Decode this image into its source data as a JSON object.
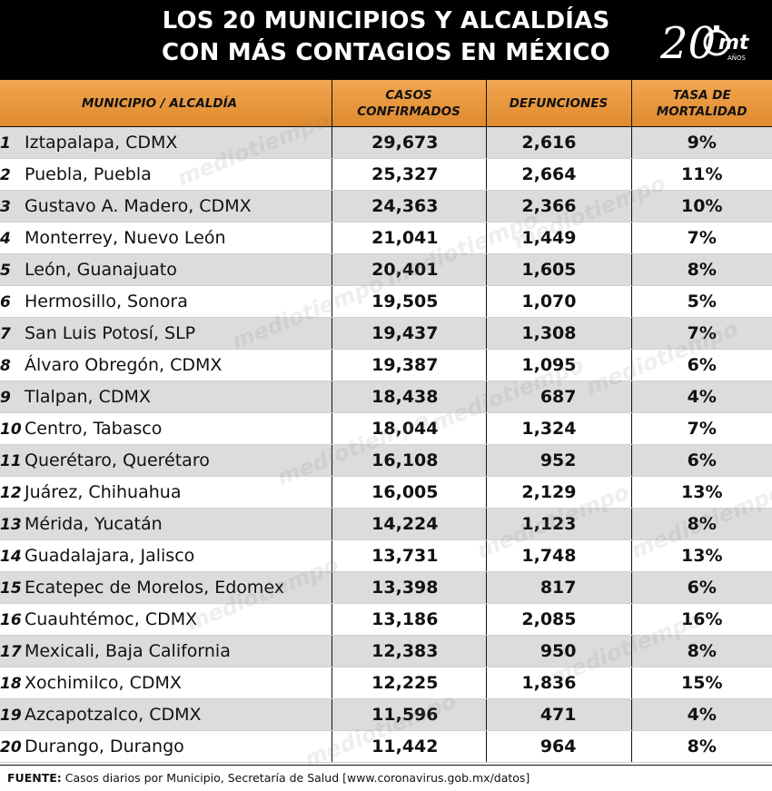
{
  "title": {
    "line1": "LOS 20 MUNICIPIOS Y ALCALDÍAS",
    "line2": "CON MÁS CONTAGIOS EN MÉXICO"
  },
  "logo": {
    "number": "20",
    "brand": "mt",
    "suffix": "AÑOS"
  },
  "watermark": "mediotiempo",
  "colors": {
    "header_bg": "#000000",
    "column_header": "#eb9a3f",
    "row_shade": "#dcdcdc"
  },
  "chart_data": {
    "type": "table",
    "columns": [
      "MUNICIPIO / ALCALDÍA",
      "CASOS CONFIRMADOS",
      "DEFUNCIONES",
      "TASA DE MORTALIDAD"
    ],
    "rows": [
      {
        "rank": "1",
        "municipio": "Iztapalapa, CDMX",
        "casos": "29,673",
        "defunciones": "2,616",
        "tasa": "9%"
      },
      {
        "rank": "2",
        "municipio": "Puebla, Puebla",
        "casos": "25,327",
        "defunciones": "2,664",
        "tasa": "11%"
      },
      {
        "rank": "3",
        "municipio": "Gustavo A. Madero, CDMX",
        "casos": "24,363",
        "defunciones": "2,366",
        "tasa": "10%"
      },
      {
        "rank": "4",
        "municipio": "Monterrey, Nuevo León",
        "casos": "21,041",
        "defunciones": "1,449",
        "tasa": "7%"
      },
      {
        "rank": "5",
        "municipio": "León, Guanajuato",
        "casos": "20,401",
        "defunciones": "1,605",
        "tasa": "8%"
      },
      {
        "rank": "6",
        "municipio": "Hermosillo, Sonora",
        "casos": "19,505",
        "defunciones": "1,070",
        "tasa": "5%"
      },
      {
        "rank": "7",
        "municipio": "San Luis Potosí, SLP",
        "casos": "19,437",
        "defunciones": "1,308",
        "tasa": "7%"
      },
      {
        "rank": "8",
        "municipio": "Álvaro Obregón, CDMX",
        "casos": "19,387",
        "defunciones": "1,095",
        "tasa": "6%"
      },
      {
        "rank": "9",
        "municipio": "Tlalpan, CDMX",
        "casos": "18,438",
        "defunciones": "687",
        "tasa": "4%"
      },
      {
        "rank": "10",
        "municipio": "Centro, Tabasco",
        "casos": "18,044",
        "defunciones": "1,324",
        "tasa": "7%"
      },
      {
        "rank": "11",
        "municipio": "Querétaro, Querétaro",
        "casos": "16,108",
        "defunciones": "952",
        "tasa": "6%"
      },
      {
        "rank": "12",
        "municipio": "Juárez, Chihuahua",
        "casos": "16,005",
        "defunciones": "2,129",
        "tasa": "13%"
      },
      {
        "rank": "13",
        "municipio": "Mérida, Yucatán",
        "casos": "14,224",
        "defunciones": "1,123",
        "tasa": "8%"
      },
      {
        "rank": "14",
        "municipio": "Guadalajara, Jalisco",
        "casos": "13,731",
        "defunciones": "1,748",
        "tasa": "13%"
      },
      {
        "rank": "15",
        "municipio": "Ecatepec de Morelos, Edomex",
        "casos": "13,398",
        "defunciones": "817",
        "tasa": "6%"
      },
      {
        "rank": "16",
        "municipio": "Cuauhtémoc, CDMX",
        "casos": "13,186",
        "defunciones": "2,085",
        "tasa": "16%"
      },
      {
        "rank": "17",
        "municipio": "Mexicali, Baja California",
        "casos": "12,383",
        "defunciones": "950",
        "tasa": "8%"
      },
      {
        "rank": "18",
        "municipio": "Xochimilco, CDMX",
        "casos": "12,225",
        "defunciones": "1,836",
        "tasa": "15%"
      },
      {
        "rank": "19",
        "municipio": "Azcapotzalco, CDMX",
        "casos": "11,596",
        "defunciones": "471",
        "tasa": "4%"
      },
      {
        "rank": "20",
        "municipio": "Durango, Durango",
        "casos": "11,442",
        "defunciones": "964",
        "tasa": "8%"
      }
    ]
  },
  "footer": {
    "label": "FUENTE:",
    "text": "Casos diarios por Municipio, Secretaría de Salud [www.coronavirus.gob.mx/datos]"
  }
}
